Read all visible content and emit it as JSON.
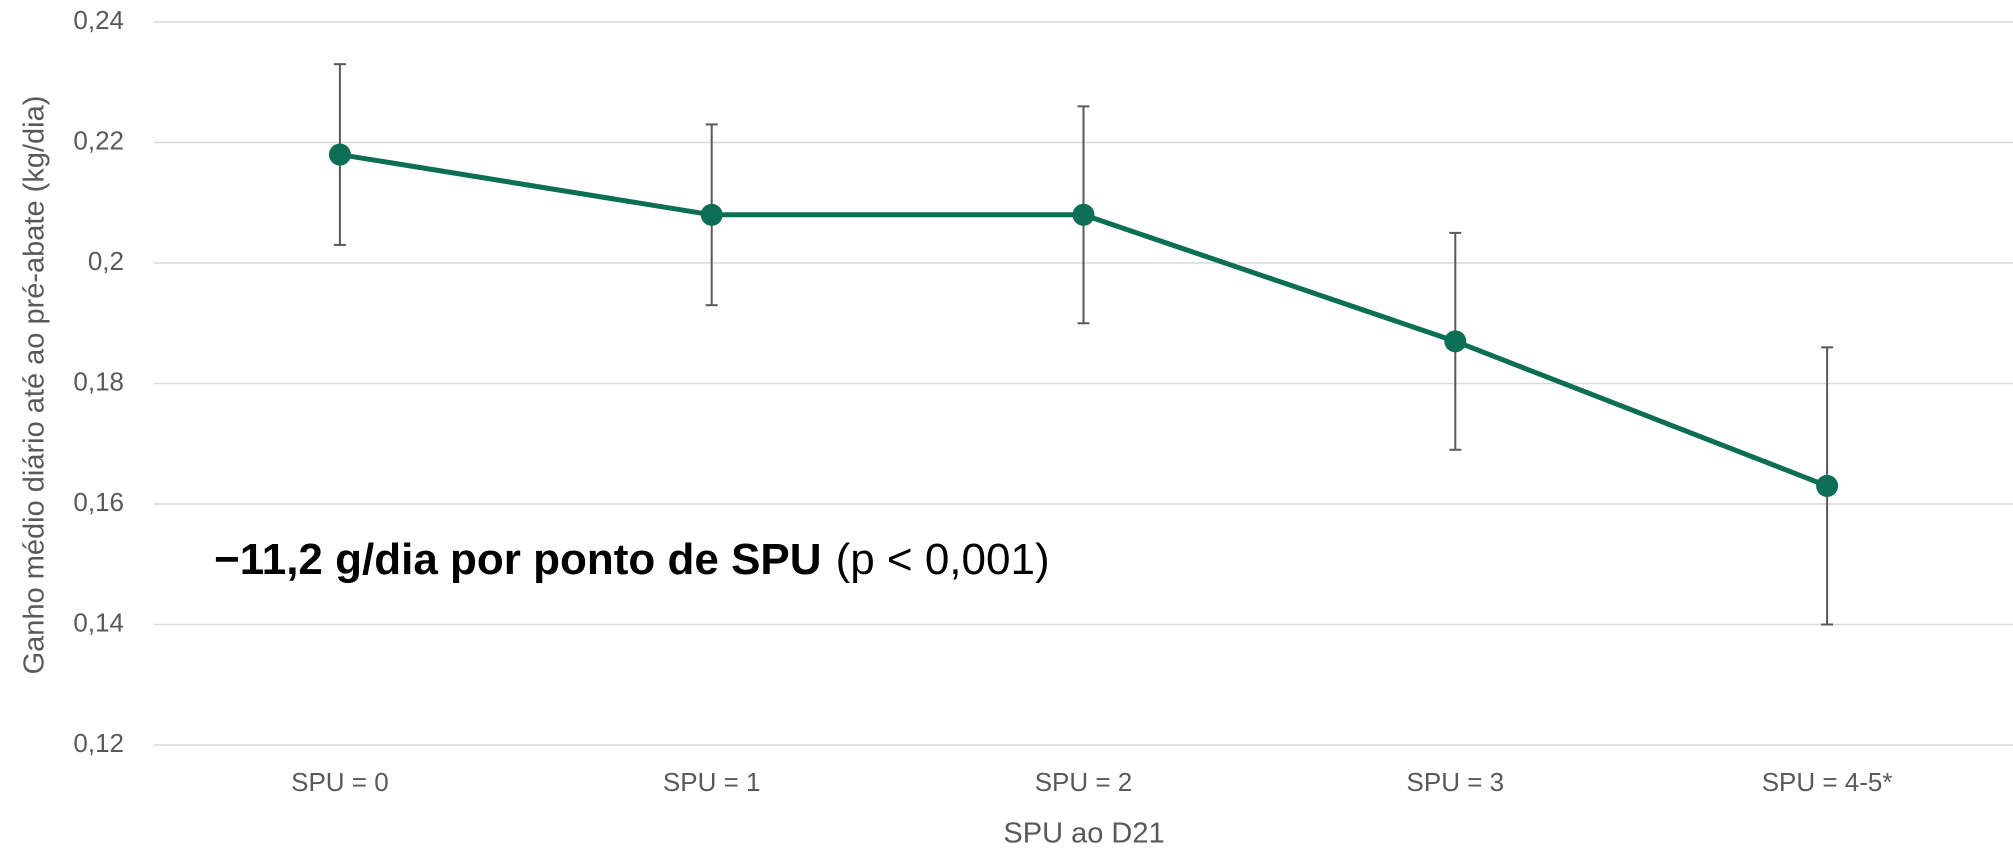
{
  "chart_data": {
    "type": "line",
    "x_label": "SPU ao D21",
    "y_label": "Ganho médio diário até ao pré-abate (kg/dia)",
    "annotation": [
      "−11,2 g/dia por ponto de SPU",
      "(p < 0,001)"
    ],
    "categories": [
      "SPU = 0",
      "SPU = 1",
      "SPU = 2",
      "SPU = 3",
      "SPU = 4-5*"
    ],
    "series": [
      {
        "color": "#0b6e55",
        "values": [
          0.218,
          0.208,
          0.208,
          0.187,
          0.163
        ],
        "errors": [
          0.015,
          0.015,
          0.018,
          0.018,
          0.023
        ]
      }
    ],
    "ylim": [
      0.12,
      0.24
    ],
    "yticks": [
      {
        "value": 0.12,
        "label": "0,12"
      },
      {
        "value": 0.14,
        "label": "0,14"
      },
      {
        "value": 0.16,
        "label": "0,16"
      },
      {
        "value": 0.18,
        "label": "0,18"
      },
      {
        "value": 0.2,
        "label": "0,2"
      },
      {
        "value": 0.22,
        "label": "0,22"
      },
      {
        "value": 0.24,
        "label": "0,24"
      }
    ],
    "grid": true
  }
}
